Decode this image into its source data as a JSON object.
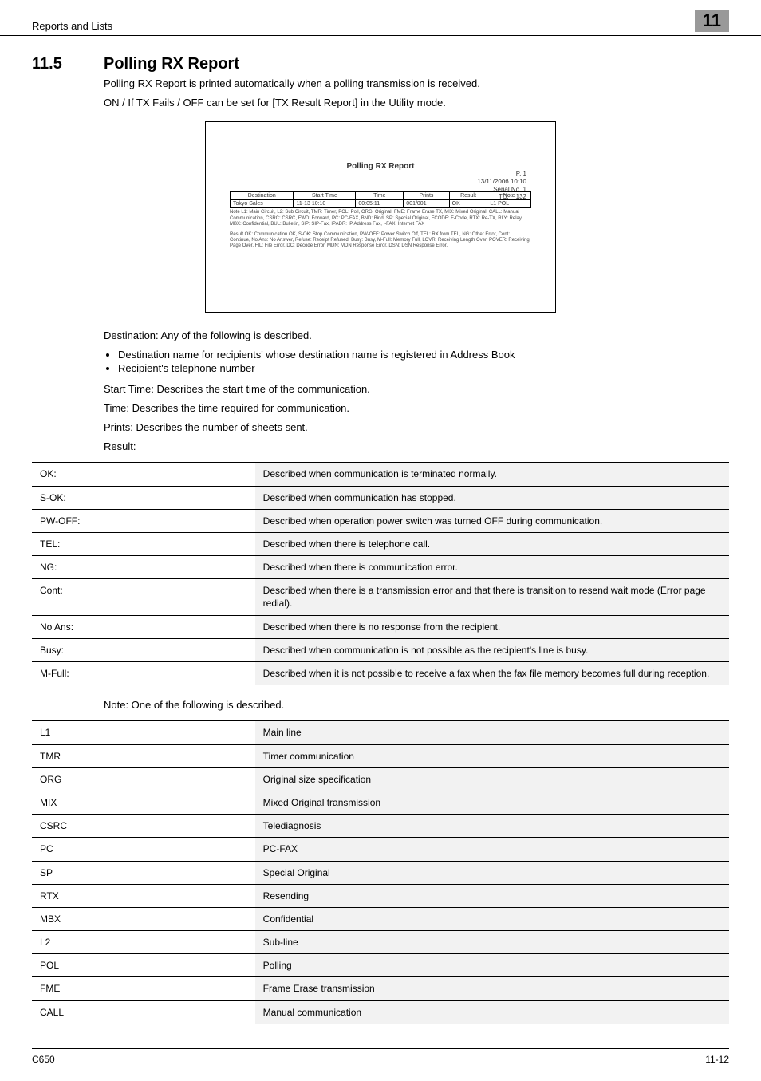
{
  "header": {
    "section": "Reports and Lists",
    "chapter": "11"
  },
  "heading": {
    "num": "11.5",
    "title": "Polling RX Report"
  },
  "intro": {
    "p1": "Polling RX Report is printed automatically when a polling transmission is received.",
    "p2": "ON / If TX Fails / OFF can be set for [TX Result Report] in the Utility mode."
  },
  "fig": {
    "title": "Polling RX Report",
    "date": "13/11/2006 10:10",
    "serial_label": "Serial No.",
    "serial": "1",
    "tc_label": "TC:",
    "tc": "132",
    "p_label": "P. 1",
    "cols": [
      "Destination",
      "Start Time",
      "Time",
      "Prints",
      "Result",
      "Note"
    ],
    "row": [
      "Tokyo Sales",
      "11-13 10:10",
      "00:05:11",
      "001/001",
      "OK",
      "L1 POL"
    ],
    "foot1": "Note  L1: Main Circuit, L2: Sub Circuit, TMR: Timer, POL: Poll, ORG: Original, FME: Frame Erase TX, MIX: Mixed Original, CALL: Manual Communication, CSRC: CSRC, FWD: Forward, PC: PC-FAX, BND: Bind, SP: Special Original, FCODE: F-Code, RTX: Re-TX, RLY: Relay, MBX: Confidential, BUL: Bulletin, SIP: SIP-Fax, IPADR: IP Address Fax, I-FAX: Internet FAX",
    "foot2": "Result  OK: Communication OK, S-OK: Stop Communication, PW-OFF: Power Switch Off, TEL: RX from TEL, NG: Other Error, Cont: Continue, No Ans: No Answer, Refuse: Receipt Refused, Busy: Busy, M-Full: Memory Full, LOVR: Receiving Length Over, POVER: Receiving Page Over, FIL: File Error, DC: Decode Error, MDN: MDN Response Error, DSN: DSN Response Error."
  },
  "desc": {
    "destination_label": "Destination: Any of the following is described.",
    "b1": "Destination name for recipients' whose destination name is registered in Address Book",
    "b2": "Recipient's telephone number",
    "start_time": "Start Time: Describes the start time of the communication.",
    "time": "Time: Describes the time required for communication.",
    "prints": "Prints: Describes the number of sheets sent.",
    "result_label": "Result:"
  },
  "results": [
    {
      "k": "OK:",
      "v": "Described when communication is terminated normally."
    },
    {
      "k": "S-OK:",
      "v": "Described when communication has stopped."
    },
    {
      "k": "PW-OFF:",
      "v": "Described when operation power switch was turned OFF during communication."
    },
    {
      "k": "TEL:",
      "v": "Described when there is telephone call."
    },
    {
      "k": "NG:",
      "v": "Described when there is communication error."
    },
    {
      "k": "Cont:",
      "v": "Described when there is a transmission error and that there is transition to resend wait mode (Error page redial)."
    },
    {
      "k": "No Ans:",
      "v": "Described when there is no response from the recipient."
    },
    {
      "k": "Busy:",
      "v": "Described when communication is not possible as the recipient's line is busy."
    },
    {
      "k": "M-Full:",
      "v": "Described when it is not possible to receive a fax when the fax file memory becomes full during reception."
    }
  ],
  "note_label": "Note: One of the following is described.",
  "notes": [
    {
      "k": "L1",
      "v": "Main line"
    },
    {
      "k": "TMR",
      "v": "Timer communication"
    },
    {
      "k": "ORG",
      "v": "Original size specification"
    },
    {
      "k": "MIX",
      "v": "Mixed Original transmission"
    },
    {
      "k": "CSRC",
      "v": "Telediagnosis"
    },
    {
      "k": "PC",
      "v": "PC-FAX"
    },
    {
      "k": "SP",
      "v": "Special Original"
    },
    {
      "k": "RTX",
      "v": "Resending"
    },
    {
      "k": "MBX",
      "v": "Confidential"
    },
    {
      "k": "L2",
      "v": "Sub-line"
    },
    {
      "k": "POL",
      "v": "Polling"
    },
    {
      "k": "FME",
      "v": "Frame Erase transmission"
    },
    {
      "k": "CALL",
      "v": "Manual communication"
    }
  ],
  "footer": {
    "left": "C650",
    "right": "11-12"
  }
}
